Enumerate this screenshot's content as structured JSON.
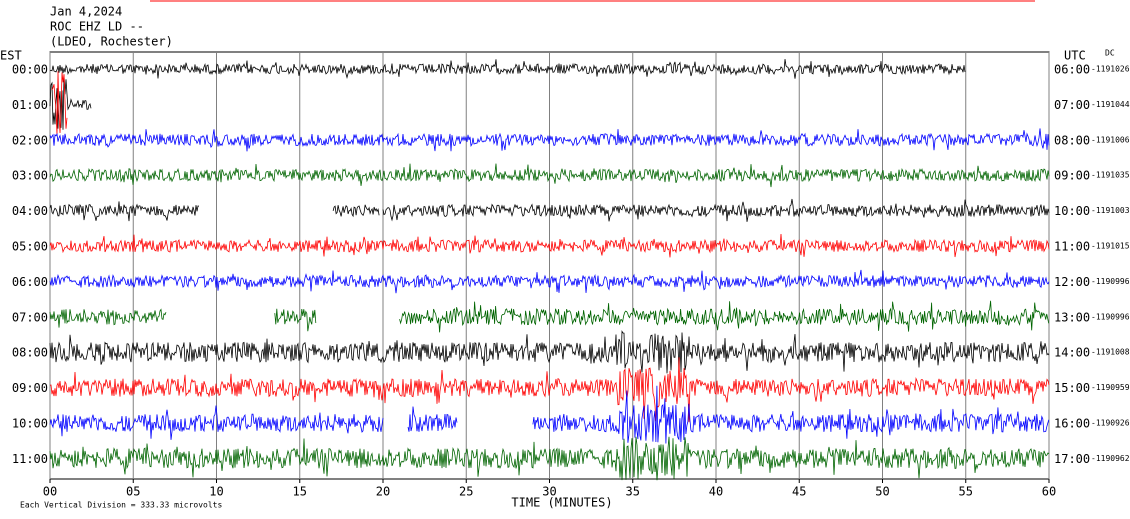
{
  "chart_data": {
    "type": "helicorder",
    "title": [
      "Jan 4,2024",
      "ROC EHZ LD --",
      "(LDEO, Rochester)"
    ],
    "left_label": "EST",
    "right_label": "UTC",
    "dc_label": "DC",
    "categories": [
      "00:00",
      "01:00",
      "02:00",
      "03:00",
      "04:00",
      "05:00",
      "06:00",
      "07:00",
      "08:00",
      "09:00",
      "10:00",
      "11:00"
    ],
    "categories_right": [
      "06:00",
      "07:00",
      "08:00",
      "09:00",
      "10:00",
      "11:00",
      "12:00",
      "13:00",
      "14:00",
      "15:00",
      "16:00",
      "17:00"
    ],
    "dc_values": [
      -1191026,
      -1191044,
      -1191006,
      -1191035,
      -1191003,
      -1191015,
      -1190996,
      -1190996,
      -1191008,
      -1190959,
      -1190926,
      -1190962
    ],
    "colors": [
      "#000000",
      "#ff0000",
      "#0000ff",
      "#006400"
    ],
    "xlim": [
      0,
      60
    ],
    "xticks": [
      {
        "value": 0,
        "label": "00"
      },
      {
        "value": 5,
        "label": "05"
      },
      10,
      15,
      20,
      25,
      30,
      35,
      40,
      45,
      50,
      55,
      60
    ],
    "x_label": "TIME (MINUTES)",
    "note": "Each Vertical Division =  333.33 microvolts"
  }
}
